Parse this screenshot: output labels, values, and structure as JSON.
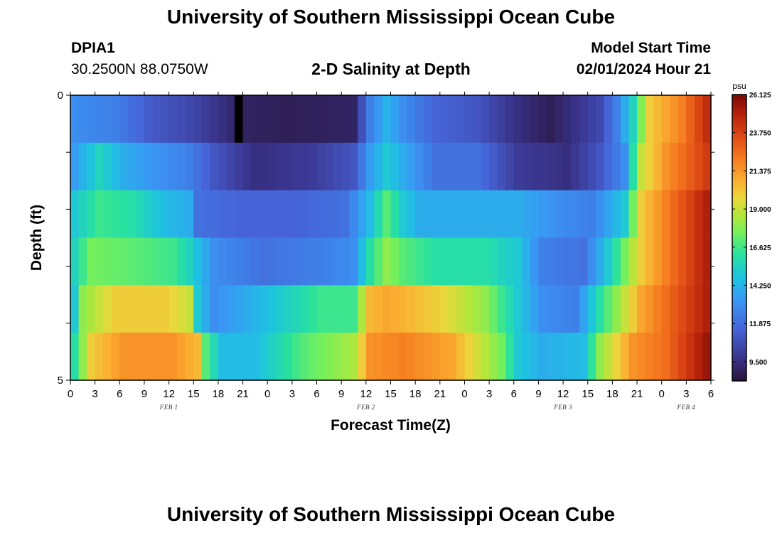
{
  "page": {
    "title": "University of Southern Mississippi Ocean Cube",
    "station_id": "DPIA1",
    "station_coords": "30.2500N  88.0750W",
    "subtitle": "2-D Salinity at Depth",
    "model_start_label": "Model Start Time",
    "model_start_value": "02/01/2024 Hour 21",
    "footer_title": "University of Southern Mississippi Ocean Cube"
  },
  "chart_data": {
    "type": "heatmap",
    "title": "2-D Salinity at Depth",
    "xlabel": "Forecast Time(Z)",
    "ylabel": "Depth (ft)",
    "x_tick_labels": [
      "0",
      "3",
      "6",
      "9",
      "12",
      "15",
      "18",
      "21",
      "0",
      "3",
      "6",
      "9",
      "12",
      "15",
      "18",
      "21",
      "0",
      "3",
      "6",
      "9",
      "12",
      "15",
      "18",
      "21",
      "0",
      "3",
      "6"
    ],
    "x_day_labels": [
      {
        "label": "FEB 1",
        "tick_index": 4
      },
      {
        "label": "FEB 2",
        "tick_index": 12
      },
      {
        "label": "FEB 3",
        "tick_index": 20
      },
      {
        "label": "FEB 4",
        "tick_index": 25
      }
    ],
    "y_tick_labels": [
      "0",
      "",
      "",
      "",
      "",
      "5"
    ],
    "depth_range_ft": [
      0,
      5
    ],
    "depth_levels_ft": [
      0,
      1,
      2,
      3,
      4,
      5
    ],
    "forecast_hours": 78,
    "time_step_hours": 1,
    "colorbar": {
      "unit": "psu",
      "min": 8.3,
      "max": 26.125,
      "tick_labels": [
        "26.125",
        "23.750",
        "21.375",
        "19.000",
        "16.625",
        "14.250",
        "11.875",
        "9.500"
      ],
      "tick_values": [
        26.125,
        23.75,
        21.375,
        19.0,
        16.625,
        14.25,
        11.875,
        9.5
      ]
    },
    "no_data": [
      {
        "depth_index": 0,
        "hour": 20
      }
    ],
    "salinity_keyframes": [
      [
        [
          0,
          13.0
        ],
        [
          5,
          12.5
        ],
        [
          10,
          11.0
        ],
        [
          14,
          10.5
        ],
        [
          20,
          9.0
        ],
        [
          26,
          8.8
        ],
        [
          34,
          9.0
        ],
        [
          36,
          12.5
        ],
        [
          38,
          14.2
        ],
        [
          40,
          13.0
        ],
        [
          44,
          11.5
        ],
        [
          49,
          11.0
        ],
        [
          54,
          9.5
        ],
        [
          58,
          8.8
        ],
        [
          64,
          10.5
        ],
        [
          66,
          12.5
        ],
        [
          68,
          15.5
        ],
        [
          70,
          20.0
        ],
        [
          74,
          22.0
        ],
        [
          77,
          24.5
        ]
      ],
      [
        [
          0,
          13.5
        ],
        [
          3,
          15.5
        ],
        [
          6,
          14.0
        ],
        [
          11,
          13.0
        ],
        [
          14,
          12.5
        ],
        [
          17,
          11.0
        ],
        [
          22,
          9.5
        ],
        [
          29,
          10.0
        ],
        [
          34,
          11.0
        ],
        [
          36,
          13.5
        ],
        [
          38,
          15.0
        ],
        [
          40,
          14.0
        ],
        [
          44,
          12.0
        ],
        [
          49,
          12.0
        ],
        [
          54,
          10.0
        ],
        [
          60,
          9.5
        ],
        [
          64,
          11.0
        ],
        [
          67,
          13.0
        ],
        [
          69,
          19.0
        ],
        [
          72,
          21.5
        ],
        [
          77,
          24.0
        ]
      ],
      [
        [
          0,
          15.0
        ],
        [
          3,
          16.5
        ],
        [
          7,
          16.0
        ],
        [
          11,
          14.5
        ],
        [
          14,
          14.0
        ],
        [
          15,
          12.0
        ],
        [
          20,
          11.5
        ],
        [
          27,
          11.5
        ],
        [
          33,
          12.0
        ],
        [
          36,
          14.5
        ],
        [
          38,
          17.0
        ],
        [
          40,
          15.0
        ],
        [
          42,
          14.0
        ],
        [
          48,
          14.0
        ],
        [
          54,
          14.0
        ],
        [
          59,
          13.0
        ],
        [
          63,
          12.5
        ],
        [
          67,
          15.0
        ],
        [
          69,
          20.0
        ],
        [
          72,
          22.0
        ],
        [
          77,
          25.0
        ]
      ],
      [
        [
          0,
          15.5
        ],
        [
          2,
          17.5
        ],
        [
          8,
          17.0
        ],
        [
          12,
          16.5
        ],
        [
          14,
          15.5
        ],
        [
          17,
          13.0
        ],
        [
          23,
          12.0
        ],
        [
          30,
          12.5
        ],
        [
          34,
          13.0
        ],
        [
          36,
          16.0
        ],
        [
          38,
          18.0
        ],
        [
          40,
          17.0
        ],
        [
          44,
          16.0
        ],
        [
          50,
          16.0
        ],
        [
          54,
          15.0
        ],
        [
          57,
          12.5
        ],
        [
          62,
          12.0
        ],
        [
          65,
          15.0
        ],
        [
          69,
          20.0
        ],
        [
          72,
          22.0
        ],
        [
          77,
          25.0
        ]
      ],
      [
        [
          0,
          15.0
        ],
        [
          1,
          18.0
        ],
        [
          5,
          20.0
        ],
        [
          11,
          20.0
        ],
        [
          14,
          19.0
        ],
        [
          15,
          15.0
        ],
        [
          17,
          13.0
        ],
        [
          23,
          14.5
        ],
        [
          30,
          16.5
        ],
        [
          34,
          16.5
        ],
        [
          36,
          20.5
        ],
        [
          38,
          21.0
        ],
        [
          44,
          20.0
        ],
        [
          50,
          18.0
        ],
        [
          54,
          15.0
        ],
        [
          57,
          13.0
        ],
        [
          61,
          12.5
        ],
        [
          64,
          16.0
        ],
        [
          69,
          21.0
        ],
        [
          72,
          22.5
        ],
        [
          77,
          25.0
        ]
      ],
      [
        [
          0,
          16.0
        ],
        [
          2,
          20.0
        ],
        [
          6,
          21.5
        ],
        [
          12,
          21.5
        ],
        [
          15,
          20.5
        ],
        [
          16,
          17.0
        ],
        [
          18,
          14.5
        ],
        [
          22,
          14.5
        ],
        [
          28,
          17.0
        ],
        [
          34,
          18.5
        ],
        [
          36,
          21.5
        ],
        [
          40,
          22.0
        ],
        [
          46,
          21.0
        ],
        [
          52,
          17.5
        ],
        [
          54,
          15.0
        ],
        [
          57,
          14.0
        ],
        [
          62,
          14.5
        ],
        [
          64,
          18.0
        ],
        [
          68,
          21.5
        ],
        [
          72,
          22.5
        ],
        [
          77,
          25.5
        ]
      ]
    ]
  }
}
